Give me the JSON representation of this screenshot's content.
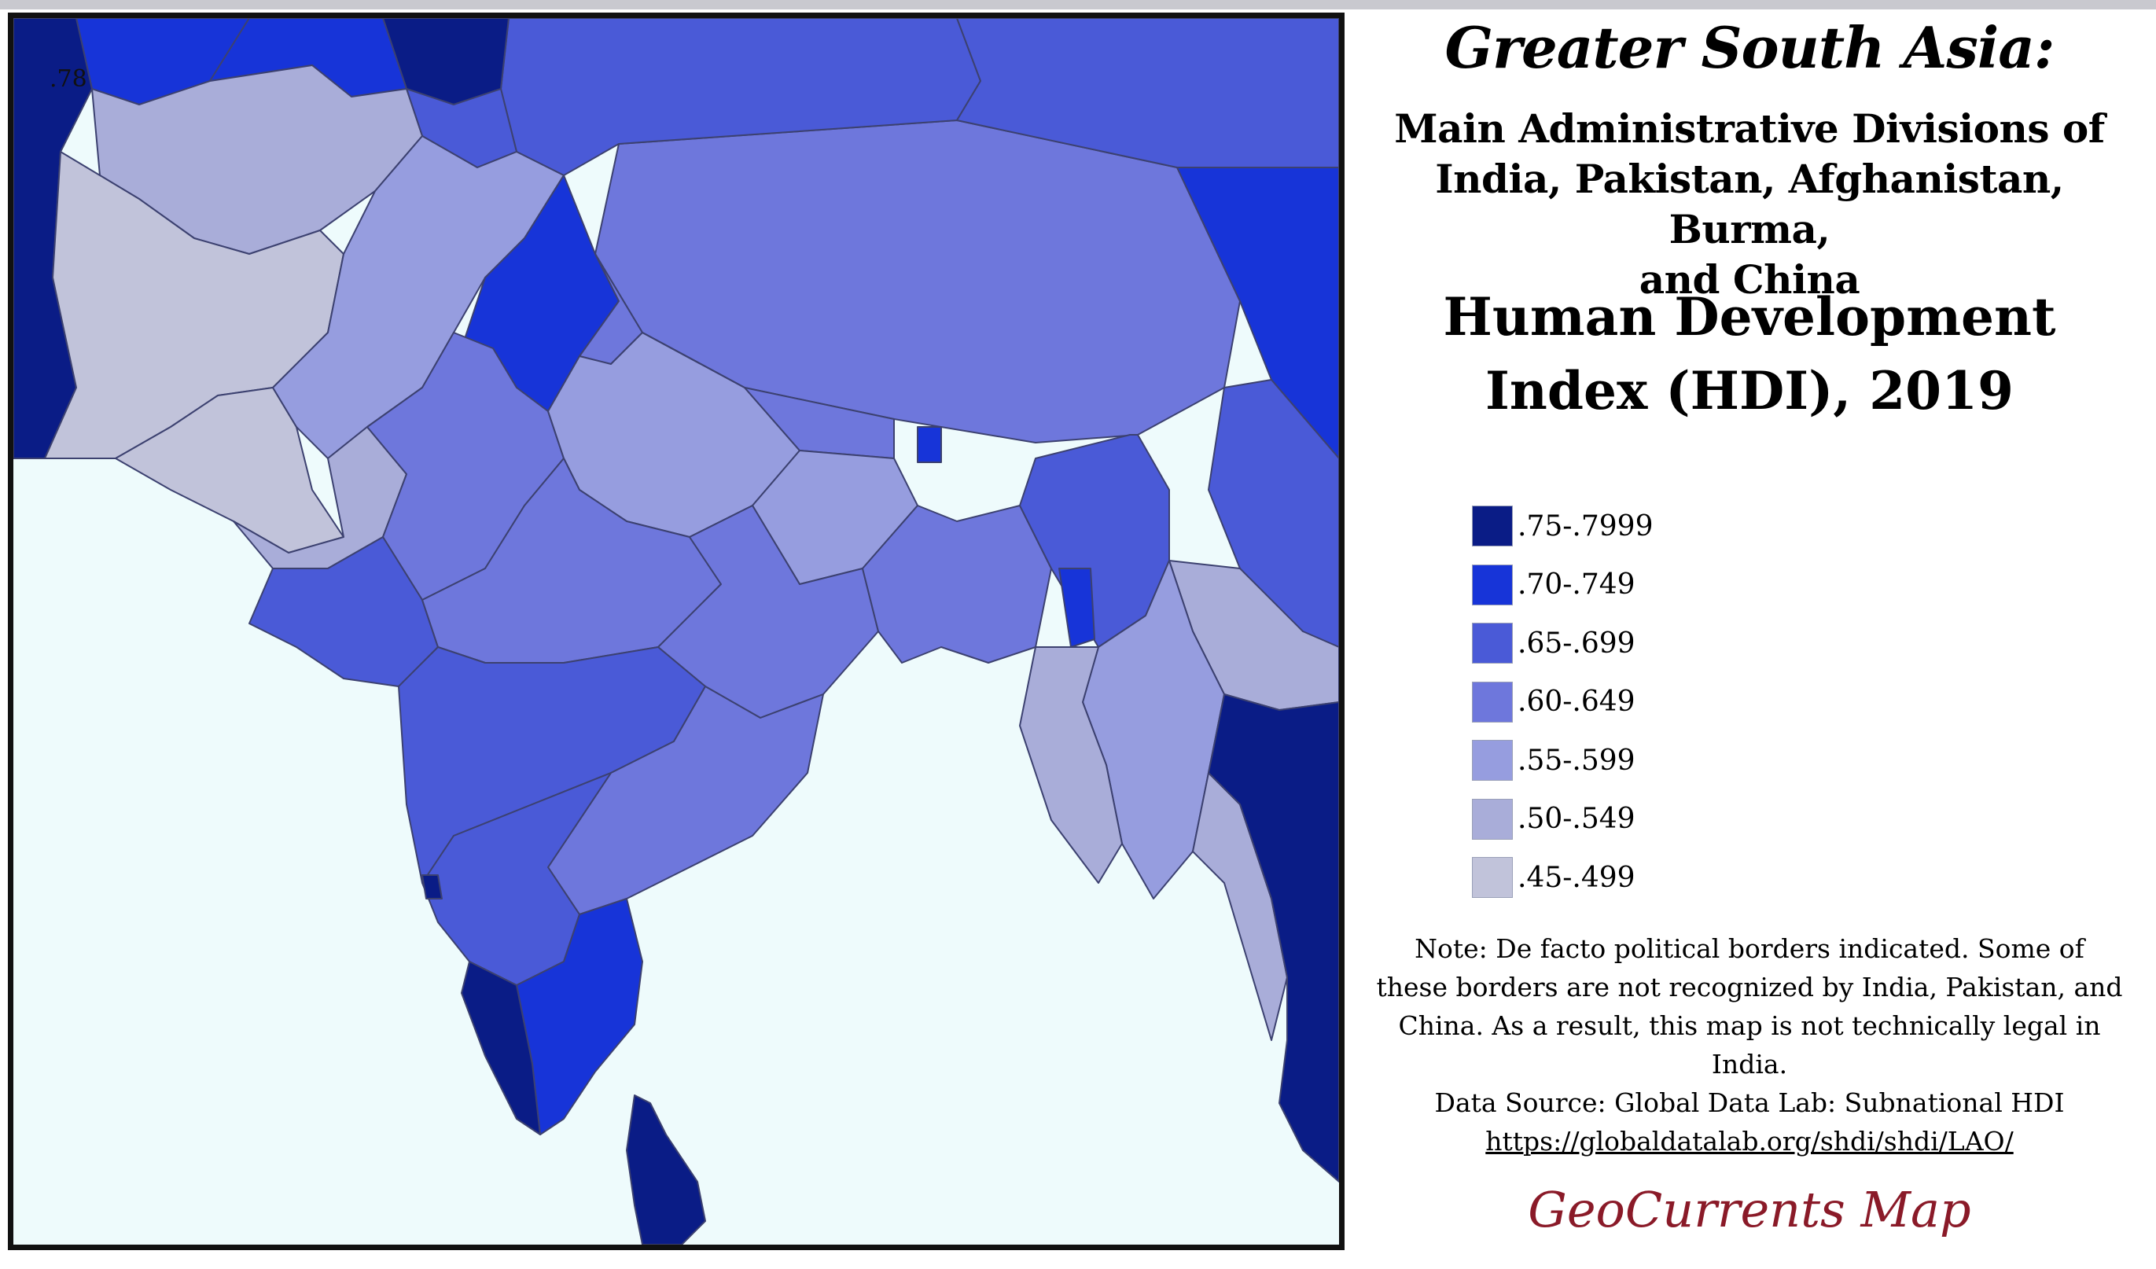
{
  "map": {
    "corner_value": ".78",
    "regions": [
      {
        "name": "Iran (east)",
        "hdi_class": ".75-.7999"
      },
      {
        "name": "Turkmenistan",
        "hdi_class": ".70-.749"
      },
      {
        "name": "Uzbekistan",
        "hdi_class": ".70-.749"
      },
      {
        "name": "Tajikistan",
        "hdi_class": ".65-.699"
      },
      {
        "name": "Kazakhstan",
        "hdi_class": ".75-.7999"
      },
      {
        "name": "Afghanistan (north)",
        "hdi_class": ".50-.549"
      },
      {
        "name": "Afghanistan (south)",
        "hdi_class": ".45-.499"
      },
      {
        "name": "Balochistan",
        "hdi_class": ".45-.499"
      },
      {
        "name": "Punjab (Pakistan)",
        "hdi_class": ".55-.599"
      },
      {
        "name": "Sindh",
        "hdi_class": ".50-.549"
      },
      {
        "name": "Xinjiang",
        "hdi_class": ".65-.699"
      },
      {
        "name": "Tibet",
        "hdi_class": ".60-.649"
      },
      {
        "name": "Qinghai",
        "hdi_class": ".65-.699"
      },
      {
        "name": "Gansu",
        "hdi_class": ".70-.749"
      },
      {
        "name": "Sichuan",
        "hdi_class": ".65-.699"
      },
      {
        "name": "Yunnan",
        "hdi_class": ".65-.699"
      },
      {
        "name": "Punjab / Himachal (India)",
        "hdi_class": ".70-.749"
      },
      {
        "name": "Uttar Pradesh",
        "hdi_class": ".55-.599"
      },
      {
        "name": "Bihar",
        "hdi_class": ".55-.599"
      },
      {
        "name": "Rajasthan",
        "hdi_class": ".60-.649"
      },
      {
        "name": "Gujarat",
        "hdi_class": ".65-.699"
      },
      {
        "name": "Madhya Pradesh",
        "hdi_class": ".60-.649"
      },
      {
        "name": "Maharashtra",
        "hdi_class": ".65-.699"
      },
      {
        "name": "Karnataka",
        "hdi_class": ".65-.699"
      },
      {
        "name": "Andhra Pradesh",
        "hdi_class": ".60-.649"
      },
      {
        "name": "Odisha / Chhattisgarh",
        "hdi_class": ".60-.649"
      },
      {
        "name": "Tamil Nadu",
        "hdi_class": ".70-.749"
      },
      {
        "name": "Kerala",
        "hdi_class": ".75-.7999"
      },
      {
        "name": "Sri Lanka",
        "hdi_class": ".75-.7999"
      },
      {
        "name": "Nepal",
        "hdi_class": ".60-.649"
      },
      {
        "name": "Bangladesh",
        "hdi_class": ".60-.649"
      },
      {
        "name": "Burma (central)",
        "hdi_class": ".55-.599"
      },
      {
        "name": "Shan State",
        "hdi_class": ".50-.549"
      },
      {
        "name": "Thailand",
        "hdi_class": ".75-.7999"
      },
      {
        "name": "Mizoram",
        "hdi_class": ".70-.749"
      }
    ]
  },
  "panel": {
    "title": "Greater South Asia:",
    "subtitle_lines": [
      "Main Administrative Divisions of",
      "India, Pakistan, Afghanistan, Burma,",
      "and China"
    ],
    "heading_lines": [
      "Human Development",
      "Index (HDI), 2019"
    ],
    "legend": [
      {
        "label": ".75-.7999",
        "color": "#0a1c86"
      },
      {
        "label": ".70-.749",
        "color": "#1734d8"
      },
      {
        "label": ".65-.699",
        "color": "#4a5ad7"
      },
      {
        "label": ".60-.649",
        "color": "#6e77dc"
      },
      {
        "label": ".55-.599",
        "color": "#969ddf"
      },
      {
        "label": ".50-.549",
        "color": "#a9add9"
      },
      {
        "label": ".45-.499",
        "color": "#c1c3da"
      }
    ],
    "note": "Note: De facto political borders indicated. Some of these borders are not recognized by India, Pakistan, and China. As a result, this map is not technically legal in India.",
    "source": "Data Source:  Global Data Lab: Subnational HDI",
    "url": "https://globaldatalab.org/shdi/shdi/LAO/",
    "brand": "GeoCurrents Map"
  }
}
